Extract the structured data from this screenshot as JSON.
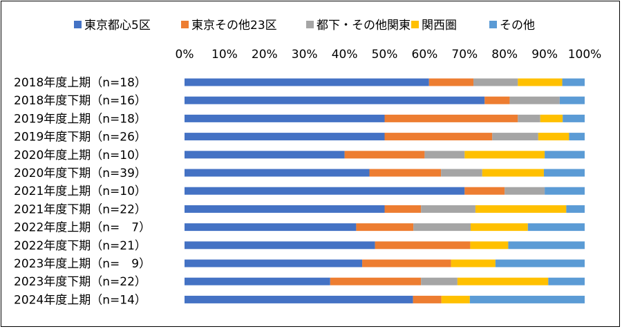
{
  "chart_data": {
    "type": "bar",
    "orientation": "horizontal",
    "stacked": "percent",
    "categories": [
      "2018年度上期（n=18）",
      "2018年度下期（n=16）",
      "2019年度上期（n=18）",
      "2019年度下期（n=26）",
      "2020年度上期（n=10）",
      "2020年度下期（n=39）",
      "2021年度上期（n=10）",
      "2021年度下期（n=22）",
      "2022年度上期（n=　7）",
      "2022年度下期（n=21）",
      "2023年度上期（n=　9）",
      "2023年度下期（n=22）",
      "2024年度上期（n=14）"
    ],
    "series": [
      {
        "name": "東京都心5区",
        "color": "#4472C4",
        "values": [
          61.1,
          75.0,
          50.0,
          50.0,
          40.0,
          46.2,
          70.0,
          50.0,
          42.9,
          47.6,
          44.4,
          36.4,
          57.1
        ]
      },
      {
        "name": "東京その他23区",
        "color": "#ED7D31",
        "values": [
          11.1,
          6.25,
          33.3,
          26.9,
          20.0,
          17.9,
          10.0,
          9.1,
          14.3,
          23.8,
          22.2,
          22.7,
          7.1
        ]
      },
      {
        "name": "都下・その他関東",
        "color": "#A5A5A5",
        "values": [
          11.1,
          12.5,
          5.6,
          11.5,
          10.0,
          10.3,
          10.0,
          13.6,
          14.3,
          0.0,
          0.0,
          9.1,
          0.0
        ]
      },
      {
        "name": "関西圏",
        "color": "#FFC000",
        "values": [
          11.1,
          0.0,
          5.6,
          7.7,
          20.0,
          15.4,
          0.0,
          22.7,
          14.3,
          9.5,
          11.1,
          22.7,
          7.1
        ]
      },
      {
        "name": "その他",
        "color": "#5B9BD5",
        "values": [
          5.6,
          6.25,
          5.5,
          3.9,
          10.0,
          10.2,
          10.0,
          4.6,
          14.2,
          19.1,
          22.3,
          9.1,
          28.7
        ]
      }
    ],
    "xlim": [
      0,
      100
    ],
    "xticks": [
      "0%",
      "10%",
      "20%",
      "30%",
      "40%",
      "50%",
      "60%",
      "70%",
      "80%",
      "90%",
      "100%"
    ],
    "legend_position": "top",
    "grid": false
  }
}
